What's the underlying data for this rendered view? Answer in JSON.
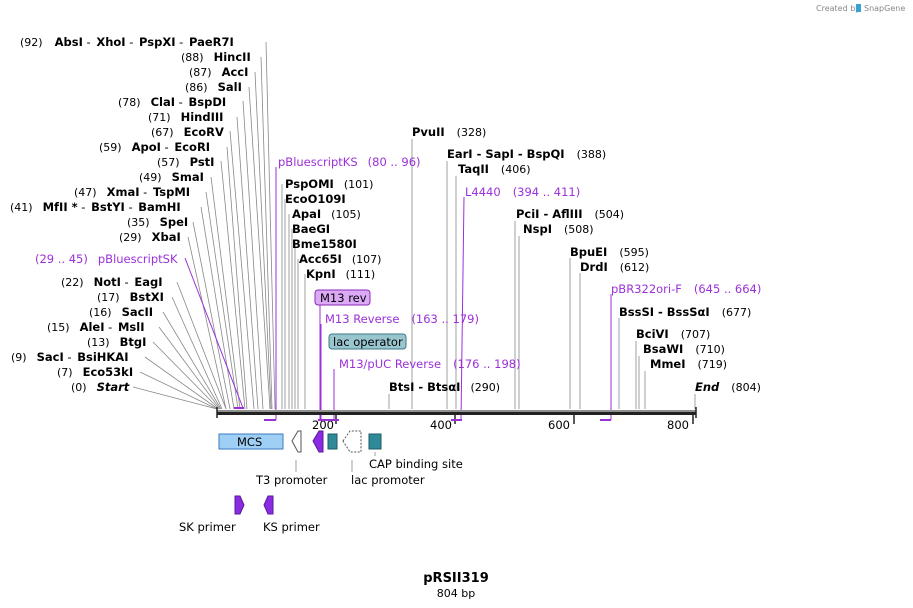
{
  "brand": {
    "created_by": "Created by",
    "name": "SnapGene"
  },
  "map": {
    "title": "pRSII319",
    "length_label": "804 bp"
  },
  "ruler": {
    "ticks": [
      "200",
      "400",
      "600",
      "800"
    ]
  },
  "enzymes_left": [
    {
      "pos": "(92)",
      "parts": [
        "AbsI",
        "XhoI",
        "PspXI",
        "PaeR7I"
      ]
    },
    {
      "pos": "(88)",
      "parts": [
        "HincII"
      ]
    },
    {
      "pos": "(87)",
      "parts": [
        "AccI"
      ]
    },
    {
      "pos": "(86)",
      "parts": [
        "SalI"
      ]
    },
    {
      "pos": "(78)",
      "parts": [
        "ClaI",
        "BspDI"
      ]
    },
    {
      "pos": "(71)",
      "parts": [
        "HindIII"
      ]
    },
    {
      "pos": "(67)",
      "parts": [
        "EcoRV"
      ]
    },
    {
      "pos": "(59)",
      "parts": [
        "ApoI",
        "EcoRI"
      ]
    },
    {
      "pos": "(57)",
      "parts": [
        "PstI"
      ]
    },
    {
      "pos": "(49)",
      "parts": [
        "SmaI"
      ]
    },
    {
      "pos": "(47)",
      "parts": [
        "XmaI",
        "TspMI"
      ]
    },
    {
      "pos": "(41)",
      "parts": [
        "MfII *",
        "BstYI",
        "BamHI"
      ]
    },
    {
      "pos": "(35)",
      "parts": [
        "SpeI"
      ]
    },
    {
      "pos": "(29)",
      "parts": [
        "XbaI"
      ]
    },
    {
      "pos": "(22)",
      "parts": [
        "NotI",
        "EagI"
      ]
    },
    {
      "pos": "(17)",
      "parts": [
        "BstXI"
      ]
    },
    {
      "pos": "(16)",
      "parts": [
        "SacII"
      ]
    },
    {
      "pos": "(15)",
      "parts": [
        "AleI",
        "MslI"
      ]
    },
    {
      "pos": "(13)",
      "parts": [
        "BtgI"
      ]
    },
    {
      "pos": "(9)",
      "parts": [
        "SacI",
        "BsiHKAI"
      ]
    },
    {
      "pos": "(7)",
      "parts": [
        "Eco53kI"
      ]
    },
    {
      "pos": "(0)",
      "parts": [
        "Start"
      ]
    }
  ],
  "enzymes_mid": [
    {
      "name": "PspOMI",
      "pos": "(101)"
    },
    {
      "name": "EcoO109I",
      "pos": ""
    },
    {
      "name": "ApaI",
      "pos": "(105)"
    },
    {
      "name": "BaeGI",
      "pos": ""
    },
    {
      "name": "Bme1580I",
      "pos": ""
    },
    {
      "name": "Acc65I",
      "pos": "(107)"
    },
    {
      "name": "KpnI",
      "pos": "(111)"
    }
  ],
  "enzymes_right": [
    {
      "name": "PvuII",
      "pos": "(328)"
    },
    {
      "name": "EarI  -  SapI  -  BspQI",
      "pos": "(388)"
    },
    {
      "name": "TaqII",
      "pos": "(406)"
    },
    {
      "name": "PciI  -  AflIII",
      "pos": "(504)"
    },
    {
      "name": "NspI",
      "pos": "(508)"
    },
    {
      "name": "BpuEI",
      "pos": "(595)"
    },
    {
      "name": "DrdI",
      "pos": "(612)"
    },
    {
      "name": "BssSI  -  BssSαI",
      "pos": "(677)"
    },
    {
      "name": "BciVI",
      "pos": "(707)"
    },
    {
      "name": "BsaWI",
      "pos": "(710)"
    },
    {
      "name": "MmeI",
      "pos": "(719)"
    },
    {
      "name": "End",
      "pos": "(804)"
    },
    {
      "name": "BtsI  -  BtsαI",
      "pos": "(290)"
    }
  ],
  "primers": [
    {
      "name": "pBluescriptKS",
      "range": "(80 .. 96)"
    },
    {
      "name": "L4440",
      "range": "(394 .. 411)"
    },
    {
      "name": "pBluescriptSK",
      "range": "(29 .. 45)"
    },
    {
      "name": "pBR322ori-F",
      "range": "(645 .. 664)"
    },
    {
      "name": "M13 Reverse",
      "range": "(163 .. 179)"
    },
    {
      "name": "M13/pUC Reverse",
      "range": "(176 .. 198)"
    }
  ],
  "features": {
    "m13_rev": "M13 rev",
    "lac_operator": "lac operator",
    "mcs": "MCS",
    "t3_promoter": "T3 promoter",
    "lac_promoter": "lac promoter",
    "cap_site": "CAP binding site",
    "sk_primer": "SK primer",
    "ks_primer": "KS primer"
  },
  "colors": {
    "primer": "#9b30d9",
    "mcs_fill": "#9fcff5",
    "teal": "#2e8a99",
    "m13rev_fill": "#dba9f5",
    "laco_fill": "#99c5cf"
  }
}
